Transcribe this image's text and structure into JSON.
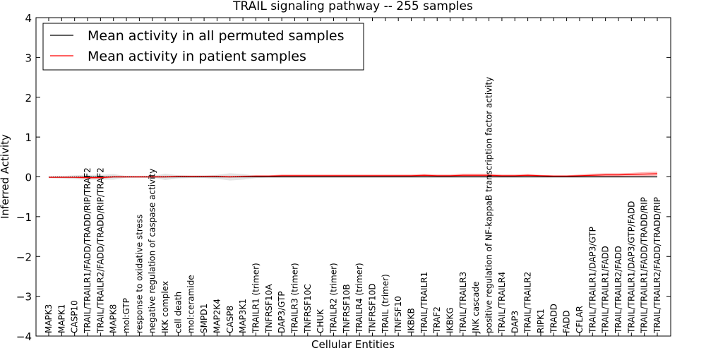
{
  "chart_data": {
    "type": "line",
    "title": "TRAIL signaling pathway -- 255 samples",
    "xlabel": "Cellular Entities",
    "ylabel": "Inferred Activity",
    "ylim": [
      -4,
      4
    ],
    "yticks": [
      -4,
      -3,
      -2,
      -1,
      0,
      1,
      2,
      3,
      4
    ],
    "ytick_labels": [
      "−4",
      "−3",
      "−2",
      "−1",
      "0",
      "1",
      "2",
      "3",
      "4"
    ],
    "grid": false,
    "legend_position": "top-left",
    "categories": [
      "MAPK3",
      "MAPK1",
      "CASP10",
      "TRAIL/TRAILR1/FADD/TRADD/RIP/TRAF2",
      "TRAIL/TRAILR2/FADD/TRADD/RIP/TRAF2",
      "MAPK8",
      "mol:GTP",
      "response to oxidative stress",
      "negative regulation of caspase activity",
      "IKK complex",
      "cell death",
      "mol:ceramide",
      "SMPD1",
      "MAP2K4",
      "CASP8",
      "MAP3K1",
      "TRAILR1 (trimer)",
      "TNFRSF10A",
      "DAP3/GTP",
      "TRAILR3 (trimer)",
      "TNFRSF10C",
      "CHUK",
      "TRAILR2 (trimer)",
      "TNFRSF10B",
      "TRAILR4 (trimer)",
      "TNFRSF10D",
      "TRAIL (trimer)",
      "TNFSF10",
      "IKBKB",
      "TRAIL/TRAILR1",
      "TRAF2",
      "IKBKG",
      "TRAIL/TRAILR3",
      "JNK cascade",
      "positive regulation of NF-kappaB transcription factor activity",
      "TRAIL/TRAILR4",
      "DAP3",
      "TRAIL/TRAILR2",
      "RIPK1",
      "TRADD",
      "FADD",
      "CFLAR",
      "TRAIL/TRAILR1/DAP3/GTP",
      "TRAIL/TRAILR1/FADD",
      "TRAIL/TRAILR2/FADD",
      "TRAIL/TRAILR1/DAP3/GTP/FADD",
      "TRAIL/TRAILR1/FADD/TRADD/RIP",
      "TRAIL/TRAILR2/FADD/TRADD/RIP"
    ],
    "series": [
      {
        "name": "Mean activity in all permuted samples",
        "color": "#000000",
        "values": [
          -0.01,
          -0.01,
          -0.01,
          -0.01,
          -0.01,
          0.0,
          0.0,
          0.0,
          0.0,
          0.0,
          0.0,
          0.0,
          0.0,
          0.0,
          0.0,
          0.0,
          0.0,
          0.0,
          0.0,
          0.0,
          0.0,
          0.0,
          0.0,
          0.0,
          0.0,
          0.0,
          0.0,
          0.0,
          0.0,
          0.0,
          0.0,
          0.0,
          0.0,
          0.0,
          0.0,
          0.0,
          0.0,
          0.0,
          0.0,
          0.0,
          0.0,
          0.0,
          0.0,
          0.0,
          0.0,
          0.0,
          0.0,
          0.0
        ],
        "band": [
          0.02,
          0.03,
          0.05,
          0.06,
          0.06,
          0.07,
          0.02,
          0.02,
          0.02,
          0.08,
          0.04,
          0.03,
          0.03,
          0.05,
          0.09,
          0.07,
          0.03,
          0.02,
          0.02,
          0.02,
          0.02,
          0.02,
          0.02,
          0.02,
          0.02,
          0.02,
          0.02,
          0.02,
          0.02,
          0.02,
          0.02,
          0.02,
          0.02,
          0.02,
          0.02,
          0.02,
          0.02,
          0.02,
          0.02,
          0.02,
          0.02,
          0.02,
          0.02,
          0.02,
          0.02,
          0.02,
          0.02,
          0.02
        ]
      },
      {
        "name": "Mean activity in patient samples",
        "color": "#ff0000",
        "values": [
          -0.01,
          -0.01,
          -0.01,
          -0.02,
          -0.02,
          0.0,
          0.0,
          0.0,
          0.0,
          0.0,
          0.01,
          0.01,
          0.01,
          0.01,
          0.0,
          0.01,
          0.02,
          0.02,
          0.03,
          0.03,
          0.03,
          0.03,
          0.03,
          0.03,
          0.03,
          0.03,
          0.03,
          0.03,
          0.03,
          0.04,
          0.03,
          0.03,
          0.04,
          0.04,
          0.04,
          0.03,
          0.03,
          0.04,
          0.03,
          0.02,
          0.02,
          0.03,
          0.04,
          0.05,
          0.05,
          0.06,
          0.07,
          0.08
        ],
        "band": [
          0.02,
          0.02,
          0.02,
          0.03,
          0.03,
          0.02,
          0.02,
          0.02,
          0.02,
          0.02,
          0.02,
          0.02,
          0.02,
          0.02,
          0.02,
          0.02,
          0.02,
          0.02,
          0.03,
          0.03,
          0.03,
          0.03,
          0.03,
          0.03,
          0.03,
          0.03,
          0.03,
          0.03,
          0.03,
          0.03,
          0.03,
          0.03,
          0.04,
          0.04,
          0.04,
          0.03,
          0.03,
          0.03,
          0.02,
          0.02,
          0.02,
          0.03,
          0.04,
          0.04,
          0.04,
          0.04,
          0.05,
          0.05
        ]
      }
    ]
  }
}
